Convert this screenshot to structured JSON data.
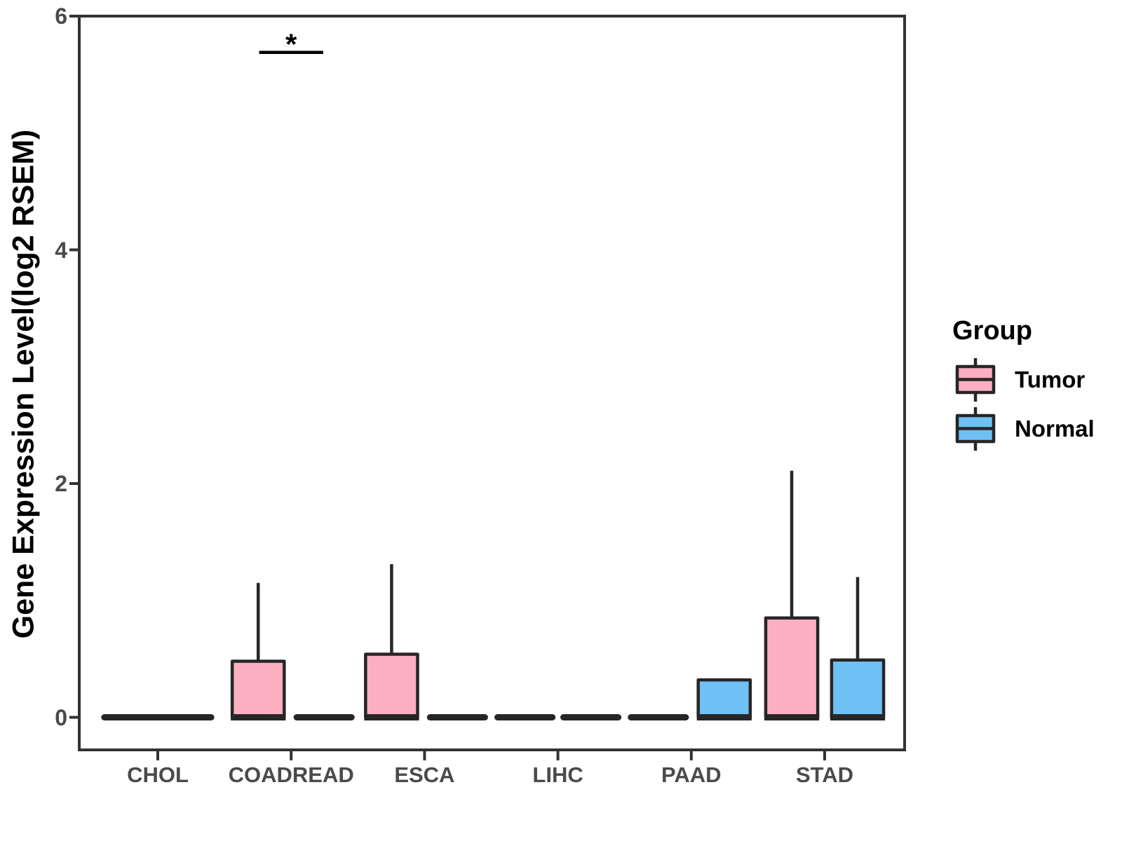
{
  "chart_data": {
    "type": "grouped_boxplot",
    "title": "",
    "xlabel": "",
    "ylabel": "Gene Expression Level(log2 RSEM)",
    "categories": [
      "CHOL",
      "COADREAD",
      "ESCA",
      "LIHC",
      "PAAD",
      "STAD"
    ],
    "y_ticks": [
      0,
      2,
      4,
      6
    ],
    "ylim": [
      -0.28,
      6
    ],
    "grid": "off",
    "legend": {
      "title": "Group",
      "position": "right",
      "entries": [
        {
          "label": "Tumor",
          "color": "#FBAFC0"
        },
        {
          "label": "Normal",
          "color": "#6FC0F5"
        }
      ]
    },
    "boxes": [
      {
        "category": "CHOL",
        "group": "Tumor",
        "whisker_low": 0,
        "q1": 0,
        "median": 0,
        "q3": 0,
        "whisker_high": 0,
        "offset": -0.195,
        "width": 0.39
      },
      {
        "category": "CHOL",
        "group": "Normal",
        "whisker_low": 0,
        "q1": 0,
        "median": 0,
        "q3": 0,
        "whisker_high": 0,
        "offset": 0.195,
        "width": 0.39
      },
      {
        "category": "COADREAD",
        "group": "Tumor",
        "whisker_low": 0,
        "q1": 0,
        "median": 0,
        "q3": 0.48,
        "whisker_high": 1.15,
        "offset": -0.247,
        "width": 0.39
      },
      {
        "category": "COADREAD",
        "group": "Normal",
        "whisker_low": 0,
        "q1": 0,
        "median": 0,
        "q3": 0,
        "whisker_high": 0,
        "offset": 0.247,
        "width": 0.39
      },
      {
        "category": "ESCA",
        "group": "Tumor",
        "whisker_low": 0,
        "q1": 0,
        "median": 0,
        "q3": 0.54,
        "whisker_high": 1.31,
        "offset": -0.247,
        "width": 0.39
      },
      {
        "category": "ESCA",
        "group": "Normal",
        "whisker_low": 0,
        "q1": 0,
        "median": 0,
        "q3": 0,
        "whisker_high": 0,
        "offset": 0.247,
        "width": 0.39
      },
      {
        "category": "LIHC",
        "group": "Tumor",
        "whisker_low": 0,
        "q1": 0,
        "median": 0,
        "q3": 0,
        "whisker_high": 0,
        "offset": -0.247,
        "width": 0.39
      },
      {
        "category": "LIHC",
        "group": "Normal",
        "whisker_low": 0,
        "q1": 0,
        "median": 0,
        "q3": 0,
        "whisker_high": 0,
        "offset": 0.247,
        "width": 0.39
      },
      {
        "category": "PAAD",
        "group": "Tumor",
        "whisker_low": 0,
        "q1": 0,
        "median": 0,
        "q3": 0,
        "whisker_high": 0,
        "offset": -0.247,
        "width": 0.39
      },
      {
        "category": "PAAD",
        "group": "Normal",
        "whisker_low": 0,
        "q1": 0,
        "median": 0,
        "q3": 0.32,
        "whisker_high": 0.32,
        "offset": 0.247,
        "width": 0.39
      },
      {
        "category": "STAD",
        "group": "Tumor",
        "whisker_low": 0,
        "q1": 0,
        "median": 0,
        "q3": 0.85,
        "whisker_high": 2.11,
        "offset": -0.247,
        "width": 0.39
      },
      {
        "category": "STAD",
        "group": "Normal",
        "whisker_low": 0,
        "q1": 0,
        "median": 0,
        "q3": 0.49,
        "whisker_high": 1.2,
        "offset": 0.247,
        "width": 0.39
      }
    ],
    "significance": [
      {
        "category": "COADREAD",
        "label": "*",
        "bar_y": 5.69,
        "half_width": 0.24
      }
    ]
  }
}
